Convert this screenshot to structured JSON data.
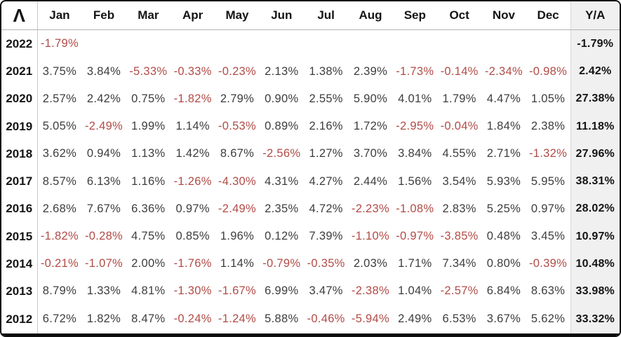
{
  "header": {
    "logo_glyph": "Λ"
  },
  "colors": {
    "negative_text": "#b14c47",
    "positive_text": "#3d3d3d",
    "header_text": "#141414",
    "annual_column_bg": "#f0f0f0"
  },
  "chart_data": {
    "type": "table",
    "unit": "%",
    "columns": [
      "Jan",
      "Feb",
      "Mar",
      "Apr",
      "May",
      "Jun",
      "Jul",
      "Aug",
      "Sep",
      "Oct",
      "Nov",
      "Dec"
    ],
    "annual_column_label": "Y/A",
    "rows": [
      {
        "year": 2022,
        "monthly": [
          -1.79,
          null,
          null,
          null,
          null,
          null,
          null,
          null,
          null,
          null,
          null,
          null
        ],
        "annual": -1.79
      },
      {
        "year": 2021,
        "monthly": [
          3.75,
          3.84,
          -5.33,
          -0.33,
          -0.23,
          2.13,
          1.38,
          2.39,
          -1.73,
          -0.14,
          -2.34,
          -0.98
        ],
        "annual": 2.42
      },
      {
        "year": 2020,
        "monthly": [
          2.57,
          2.42,
          0.75,
          -1.82,
          2.79,
          0.9,
          2.55,
          5.9,
          4.01,
          1.79,
          4.47,
          1.05
        ],
        "annual": 27.38
      },
      {
        "year": 2019,
        "monthly": [
          5.05,
          -2.49,
          1.99,
          1.14,
          -0.53,
          0.89,
          2.16,
          1.72,
          -2.95,
          -0.04,
          1.84,
          2.38
        ],
        "annual": 11.18
      },
      {
        "year": 2018,
        "monthly": [
          3.62,
          0.94,
          1.13,
          1.42,
          8.67,
          -2.56,
          1.27,
          3.7,
          3.84,
          4.55,
          2.71,
          -1.32
        ],
        "annual": 27.96
      },
      {
        "year": 2017,
        "monthly": [
          8.57,
          6.13,
          1.16,
          -1.26,
          -4.3,
          4.31,
          4.27,
          2.44,
          1.56,
          3.54,
          5.93,
          5.95
        ],
        "annual": 38.31
      },
      {
        "year": 2016,
        "monthly": [
          2.68,
          7.67,
          6.36,
          0.97,
          -2.49,
          2.35,
          4.72,
          -2.23,
          -1.08,
          2.83,
          5.25,
          0.97
        ],
        "annual": 28.02
      },
      {
        "year": 2015,
        "monthly": [
          -1.82,
          -0.28,
          4.75,
          0.85,
          1.96,
          0.12,
          7.39,
          -1.1,
          -0.97,
          -3.85,
          0.48,
          3.45
        ],
        "annual": 10.97
      },
      {
        "year": 2014,
        "monthly": [
          -0.21,
          -1.07,
          2.0,
          -1.76,
          1.14,
          -0.79,
          -0.35,
          2.03,
          1.71,
          7.34,
          0.8,
          -0.39
        ],
        "annual": 10.48
      },
      {
        "year": 2013,
        "monthly": [
          8.79,
          1.33,
          4.81,
          -1.3,
          -1.67,
          6.99,
          3.47,
          -2.38,
          1.04,
          -2.57,
          6.84,
          8.63
        ],
        "annual": 33.98
      },
      {
        "year": 2012,
        "monthly": [
          6.72,
          1.82,
          8.47,
          -0.24,
          -1.24,
          5.88,
          -0.46,
          -5.94,
          2.49,
          6.53,
          3.67,
          5.62
        ],
        "annual": 33.32
      }
    ]
  }
}
